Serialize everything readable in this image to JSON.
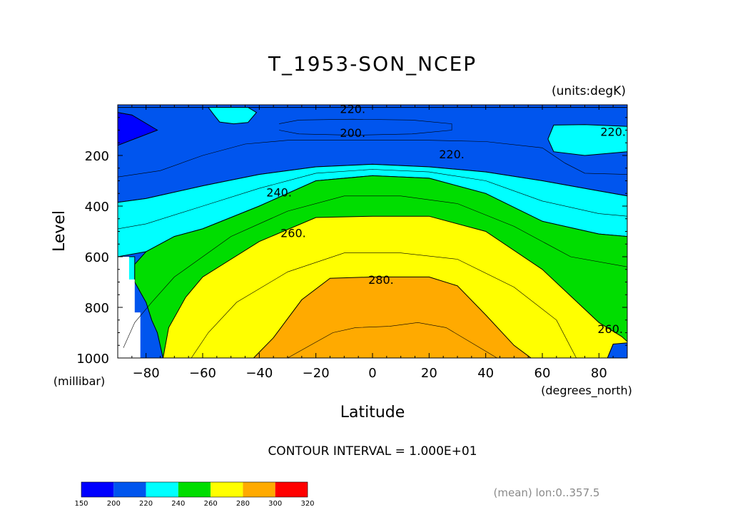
{
  "chart_data": {
    "type": "heatmap",
    "subtype": "filled-contour",
    "title": "T_1953-SON_NCEP",
    "units_label": "(units:degK)",
    "xlabel": "Latitude",
    "x_units": "(degrees_north)",
    "ylabel": "Level",
    "y_units": "(millibar)",
    "xlim": [
      -90,
      90
    ],
    "ylim": [
      1000,
      0
    ],
    "x_ticks": [
      -80,
      -60,
      -40,
      -20,
      0,
      20,
      40,
      60,
      80
    ],
    "y_ticks": [
      200,
      400,
      600,
      800,
      1000
    ],
    "contour_interval_text": "CONTOUR INTERVAL = 1.000E+01",
    "footnote": "(mean) lon:0..357.5",
    "levels": [
      150,
      200,
      220,
      240,
      260,
      280,
      300,
      320
    ],
    "colors": [
      "#0000ff",
      "#0055ee",
      "#00ffff",
      "#00dd00",
      "#ffff00",
      "#ffaa00",
      "#ff0000"
    ],
    "contour_labels": [
      {
        "text": "220.",
        "lat": -7,
        "level": 15
      },
      {
        "text": "200.",
        "lat": -7,
        "level": 110
      },
      {
        "text": "220.",
        "lat": 28,
        "level": 195
      },
      {
        "text": "220.",
        "lat": 85,
        "level": 105
      },
      {
        "text": "240.",
        "lat": -33,
        "level": 345
      },
      {
        "text": "260.",
        "lat": -28,
        "level": 505
      },
      {
        "text": "280.",
        "lat": 3,
        "level": 690
      },
      {
        "text": "260.",
        "lat": 84,
        "level": 885
      }
    ],
    "filled_regions": [
      {
        "min": 150,
        "points": [
          [
            -90,
            30
          ],
          [
            -90,
            160
          ],
          [
            -84,
            155
          ],
          [
            -78,
            130
          ],
          [
            -76,
            100
          ],
          [
            -79,
            60
          ],
          [
            -85,
            40
          ]
        ]
      },
      {
        "min": 150,
        "points": [
          [
            -20,
            80
          ],
          [
            -10,
            72
          ],
          [
            5,
            72
          ],
          [
            18,
            80
          ],
          [
            22,
            90
          ],
          [
            15,
            105
          ],
          [
            0,
            110
          ],
          [
            -15,
            105
          ],
          [
            -22,
            92
          ]
        ]
      },
      {
        "min": 200,
        "points": [
          [
            -90,
            160
          ],
          [
            -76,
            100
          ],
          [
            -85,
            40
          ],
          [
            -90,
            30
          ],
          [
            -90,
            10
          ],
          [
            90,
            10
          ],
          [
            90,
            360
          ],
          [
            80,
            340
          ],
          [
            60,
            300
          ],
          [
            40,
            265
          ],
          [
            20,
            245
          ],
          [
            0,
            235
          ],
          [
            -20,
            245
          ],
          [
            -40,
            275
          ],
          [
            -60,
            320
          ],
          [
            -80,
            370
          ],
          [
            -90,
            385
          ]
        ]
      },
      {
        "min": 220,
        "points": [
          [
            -90,
            385
          ],
          [
            -80,
            370
          ],
          [
            -60,
            320
          ],
          [
            -40,
            275
          ],
          [
            -20,
            245
          ],
          [
            0,
            235
          ],
          [
            20,
            245
          ],
          [
            40,
            265
          ],
          [
            60,
            300
          ],
          [
            80,
            340
          ],
          [
            90,
            360
          ],
          [
            90,
            520
          ],
          [
            80,
            510
          ],
          [
            60,
            460
          ],
          [
            40,
            350
          ],
          [
            20,
            290
          ],
          [
            0,
            280
          ],
          [
            -20,
            300
          ],
          [
            -40,
            400
          ],
          [
            -60,
            490
          ],
          [
            -70,
            520
          ],
          [
            -80,
            580
          ],
          [
            -90,
            600
          ]
        ]
      },
      {
        "min": 220,
        "points": [
          [
            -44,
            10
          ],
          [
            -41,
            30
          ],
          [
            -44,
            70
          ],
          [
            -49,
            75
          ],
          [
            -54,
            68
          ],
          [
            -56,
            40
          ],
          [
            -58,
            10
          ]
        ]
      },
      {
        "min": 220,
        "points": [
          [
            64,
            80
          ],
          [
            75,
            78
          ],
          [
            90,
            85
          ],
          [
            90,
            185
          ],
          [
            75,
            200
          ],
          [
            64,
            185
          ],
          [
            62,
            135
          ]
        ]
      },
      {
        "min": 220,
        "points": [
          [
            -90,
            600
          ],
          [
            -84,
            600
          ],
          [
            -84,
            700
          ],
          [
            -90,
            700
          ]
        ]
      },
      {
        "min": 240,
        "points": [
          [
            -84,
            700
          ],
          [
            -84,
            630
          ],
          [
            -80,
            580
          ],
          [
            -70,
            520
          ],
          [
            -60,
            490
          ],
          [
            -40,
            400
          ],
          [
            -20,
            300
          ],
          [
            0,
            280
          ],
          [
            20,
            290
          ],
          [
            40,
            350
          ],
          [
            60,
            460
          ],
          [
            80,
            510
          ],
          [
            90,
            520
          ],
          [
            90,
            935
          ],
          [
            85,
            945
          ],
          [
            83,
            1000
          ],
          [
            -74,
            1000
          ],
          [
            -76,
            900
          ],
          [
            -78,
            850
          ],
          [
            -80,
            780
          ],
          [
            -82,
            740
          ]
        ]
      },
      {
        "min": 260,
        "points": [
          [
            -74,
            1000
          ],
          [
            -72,
            880
          ],
          [
            -66,
            760
          ],
          [
            -60,
            680
          ],
          [
            -40,
            540
          ],
          [
            -20,
            445
          ],
          [
            0,
            440
          ],
          [
            20,
            440
          ],
          [
            40,
            500
          ],
          [
            60,
            650
          ],
          [
            80,
            860
          ],
          [
            88,
            915
          ],
          [
            90,
            935
          ],
          [
            90,
            940
          ],
          [
            85,
            945
          ],
          [
            83,
            1000
          ]
        ]
      },
      {
        "min": 280,
        "points": [
          [
            -42,
            1000
          ],
          [
            -35,
            920
          ],
          [
            -25,
            770
          ],
          [
            -15,
            685
          ],
          [
            0,
            680
          ],
          [
            20,
            680
          ],
          [
            30,
            715
          ],
          [
            40,
            830
          ],
          [
            50,
            950
          ],
          [
            56,
            1000
          ]
        ]
      },
      {
        "min": 220,
        "points": [
          [
            -90,
            700
          ],
          [
            -86,
            700
          ],
          [
            -86,
            1000
          ],
          [
            -90,
            1000
          ]
        ]
      }
    ],
    "blank_regions": [
      {
        "points": [
          [
            -90,
            600
          ],
          [
            -86,
            600
          ],
          [
            -86,
            690
          ],
          [
            -84,
            690
          ],
          [
            -84,
            820
          ],
          [
            -82,
            820
          ],
          [
            -82,
            1000
          ],
          [
            -90,
            1000
          ]
        ]
      }
    ],
    "contour_lines": [
      {
        "weight": "thin",
        "points": [
          [
            -33,
            75
          ],
          [
            -26,
            60
          ],
          [
            -7,
            57
          ],
          [
            14,
            60
          ],
          [
            28,
            75
          ],
          [
            28,
            100
          ],
          [
            14,
            115
          ],
          [
            -7,
            120
          ],
          [
            -26,
            115
          ],
          [
            -33,
            100
          ]
        ]
      },
      {
        "weight": "thin",
        "points": [
          [
            -90,
            285
          ],
          [
            -75,
            260
          ],
          [
            -60,
            200
          ],
          [
            -45,
            155
          ],
          [
            -30,
            140
          ],
          [
            -10,
            140
          ],
          [
            20,
            140
          ],
          [
            40,
            145
          ],
          [
            60,
            170
          ],
          [
            68,
            230
          ],
          [
            75,
            270
          ],
          [
            90,
            275
          ]
        ]
      },
      {
        "weight": "thin",
        "points": [
          [
            -90,
            490
          ],
          [
            -80,
            470
          ],
          [
            -60,
            400
          ],
          [
            -40,
            330
          ],
          [
            -20,
            270
          ],
          [
            0,
            255
          ],
          [
            20,
            265
          ],
          [
            40,
            300
          ],
          [
            60,
            380
          ],
          [
            80,
            430
          ],
          [
            90,
            440
          ]
        ]
      },
      {
        "weight": "thin",
        "points": [
          [
            -88,
            960
          ],
          [
            -84,
            860
          ],
          [
            -78,
            780
          ],
          [
            -70,
            680
          ],
          [
            -50,
            520
          ],
          [
            -30,
            420
          ],
          [
            -10,
            360
          ],
          [
            10,
            360
          ],
          [
            30,
            390
          ],
          [
            50,
            480
          ],
          [
            70,
            600
          ],
          [
            90,
            640
          ]
        ]
      },
      {
        "weight": "thin",
        "points": [
          [
            -64,
            1000
          ],
          [
            -58,
            900
          ],
          [
            -48,
            780
          ],
          [
            -30,
            660
          ],
          [
            -10,
            585
          ],
          [
            10,
            585
          ],
          [
            30,
            610
          ],
          [
            50,
            720
          ],
          [
            65,
            850
          ],
          [
            72,
            1000
          ]
        ]
      },
      {
        "weight": "thin",
        "points": [
          [
            -30,
            1000
          ],
          [
            -22,
            950
          ],
          [
            -14,
            900
          ],
          [
            -6,
            880
          ],
          [
            6,
            875
          ],
          [
            16,
            860
          ],
          [
            26,
            880
          ],
          [
            38,
            960
          ],
          [
            44,
            1000
          ]
        ]
      }
    ]
  }
}
